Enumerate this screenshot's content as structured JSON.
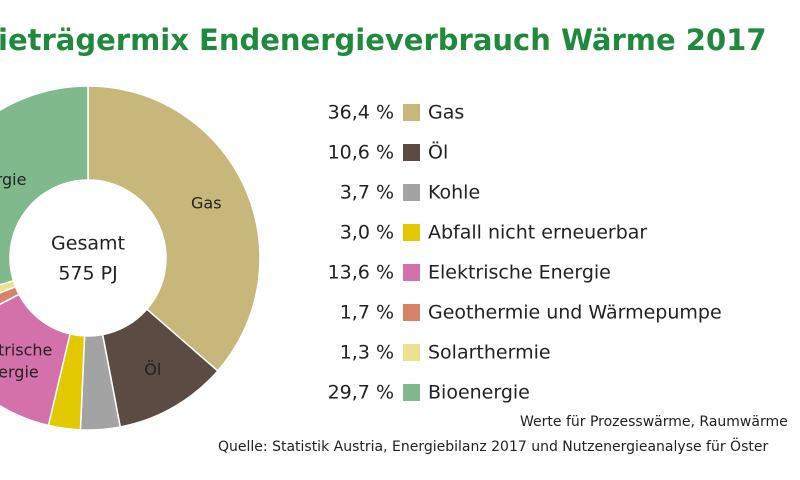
{
  "chart_data": {
    "type": "donut",
    "title": "ieträgermix Endenergieverbrauch Wärme 2017",
    "center_text": [
      "Gesamt",
      "575 PJ"
    ],
    "categories": [
      "Gas",
      "Öl",
      "Kohle",
      "Abfall nicht erneuerbar",
      "Elektrische Energie",
      "Geothermie und Wärmepumpe",
      "Solarthermie",
      "Bioenergie"
    ],
    "values": [
      36.4,
      10.6,
      3.7,
      3.0,
      13.6,
      1.7,
      1.3,
      29.7
    ],
    "value_labels": [
      "36,4 %",
      "10,6 %",
      "3,7 %",
      "3,0 %",
      "13,6 %",
      "1,7 %",
      "1,3 %",
      "29,7 %"
    ],
    "colors": [
      "#c8b77a",
      "#5b4b43",
      "#a3a3a3",
      "#e2c900",
      "#d470aa",
      "#d5846a",
      "#ebe190",
      "#80ba8c"
    ],
    "notes": [
      "Werte für Prozesswärme, Raumwärme",
      "Quelle: Statistik Austria, Energiebilanz 2017 und Nutzenergieanalyse für Öster"
    ]
  }
}
